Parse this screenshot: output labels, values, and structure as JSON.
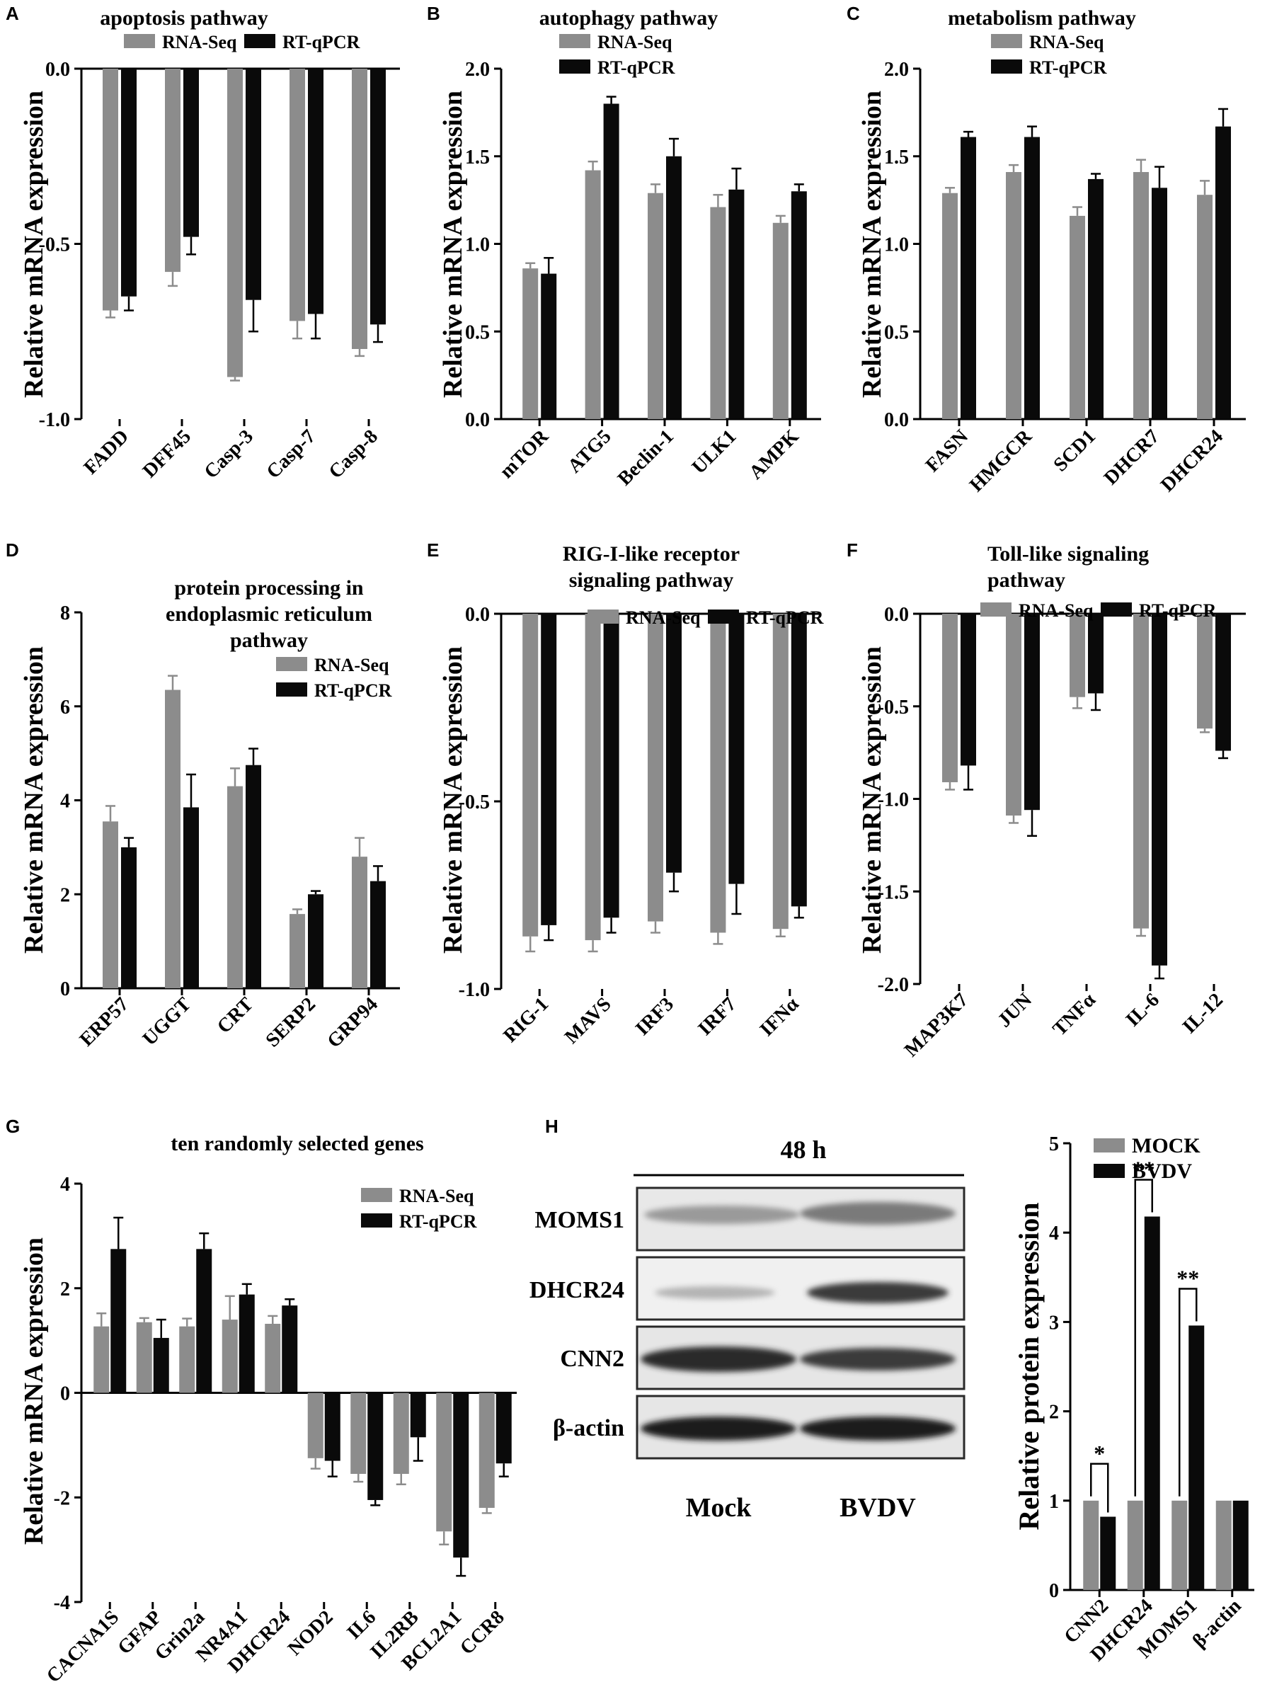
{
  "figure": {
    "panel_letters": [
      "A",
      "B",
      "C",
      "D",
      "E",
      "F",
      "G",
      "H"
    ],
    "ylabel_mrna": "Relative mRNA expression",
    "ylabel_protein": "Relative protein expression"
  },
  "colors": {
    "rna_seq": "#8c8c8c",
    "rt_qpcr": "#0a0a0a",
    "mock": "#8c8c8c",
    "bvdv": "#0a0a0a"
  },
  "chart_data": [
    {
      "id": "A",
      "type": "bar",
      "title_lines": [
        "apoptosis pathway"
      ],
      "ylabel": "Relative mRNA expression",
      "ylim": [
        -1.0,
        0.0
      ],
      "ticks": [
        0.0,
        -0.5,
        -1.0
      ],
      "tick_labels": [
        "0.0",
        "-0.5",
        "-1.0"
      ],
      "baseline": 0,
      "categories": [
        "FADD",
        "DFF45",
        "Casp-3",
        "Casp-7",
        "Casp-8"
      ],
      "legend": {
        "entries": [
          "RNA-Seq",
          "RT-qPCR"
        ],
        "position": "top-center"
      },
      "series": [
        {
          "name": "RNA-Seq",
          "values": [
            -0.69,
            -0.58,
            -0.88,
            -0.72,
            -0.8
          ],
          "errors": [
            0.02,
            0.04,
            0.01,
            0.05,
            0.02
          ]
        },
        {
          "name": "RT-qPCR",
          "values": [
            -0.65,
            -0.48,
            -0.66,
            -0.7,
            -0.73
          ],
          "errors": [
            0.04,
            0.05,
            0.09,
            0.07,
            0.05
          ]
        }
      ]
    },
    {
      "id": "B",
      "type": "bar",
      "title_lines": [
        "autophagy pathway"
      ],
      "ylabel": "Relative mRNA expression",
      "ylim": [
        0.0,
        2.0
      ],
      "ticks": [
        0.0,
        0.5,
        1.0,
        1.5,
        2.0
      ],
      "tick_labels": [
        "0.0",
        "0.5",
        "1.0",
        "1.5",
        "2.0"
      ],
      "baseline": 0,
      "categories": [
        "mTOR",
        "ATG5",
        "Beclin-1",
        "ULK1",
        "AMPK"
      ],
      "legend": {
        "entries": [
          "RNA-Seq",
          "RT-qPCR"
        ],
        "position": "top-left"
      },
      "series": [
        {
          "name": "RNA-Seq",
          "values": [
            0.86,
            1.42,
            1.29,
            1.21,
            1.12
          ],
          "errors": [
            0.03,
            0.05,
            0.05,
            0.07,
            0.04
          ]
        },
        {
          "name": "RT-qPCR",
          "values": [
            0.83,
            1.8,
            1.5,
            1.31,
            1.3
          ],
          "errors": [
            0.09,
            0.04,
            0.1,
            0.12,
            0.04
          ]
        }
      ]
    },
    {
      "id": "C",
      "type": "bar",
      "title_lines": [
        "metabolism pathway"
      ],
      "ylabel": "Relative mRNA expression",
      "ylim": [
        0.0,
        2.0
      ],
      "ticks": [
        0.0,
        0.5,
        1.0,
        1.5,
        2.0
      ],
      "tick_labels": [
        "0.0",
        "0.5",
        "1.0",
        "1.5",
        "2.0"
      ],
      "baseline": 0,
      "categories": [
        "FASN",
        "HMGCR",
        "SCD1",
        "DHCR7",
        "DHCR24"
      ],
      "legend": {
        "entries": [
          "RNA-Seq",
          "RT-qPCR"
        ],
        "position": "top-left"
      },
      "series": [
        {
          "name": "RNA-Seq",
          "values": [
            1.29,
            1.41,
            1.16,
            1.41,
            1.28
          ],
          "errors": [
            0.03,
            0.04,
            0.05,
            0.07,
            0.08
          ]
        },
        {
          "name": "RT-qPCR",
          "values": [
            1.61,
            1.61,
            1.37,
            1.32,
            1.67
          ],
          "errors": [
            0.03,
            0.06,
            0.03,
            0.12,
            0.1
          ]
        }
      ]
    },
    {
      "id": "D",
      "type": "bar",
      "title_lines": [
        "protein processing in",
        "endoplasmic reticulum",
        "pathway"
      ],
      "ylabel": "Relative mRNA expression",
      "ylim": [
        0,
        8
      ],
      "ticks": [
        0,
        2,
        4,
        6,
        8
      ],
      "tick_labels": [
        "0",
        "2",
        "4",
        "6",
        "8"
      ],
      "baseline": 0,
      "categories": [
        "ERP57",
        "UGGT",
        "CRT",
        "SERP2",
        "GRP94"
      ],
      "legend": {
        "entries": [
          "RNA-Seq",
          "RT-qPCR"
        ],
        "position": "top-right"
      },
      "series": [
        {
          "name": "RNA-Seq",
          "values": [
            3.55,
            6.35,
            4.3,
            1.58,
            2.8
          ],
          "errors": [
            0.33,
            0.3,
            0.38,
            0.1,
            0.4
          ]
        },
        {
          "name": "RT-qPCR",
          "values": [
            3.0,
            3.85,
            4.75,
            2.0,
            2.28
          ],
          "errors": [
            0.2,
            0.7,
            0.35,
            0.07,
            0.32
          ]
        }
      ]
    },
    {
      "id": "E",
      "type": "bar",
      "title_lines": [
        "RIG-I-like receptor",
        "signaling pathway"
      ],
      "ylabel": "Relative mRNA expression",
      "ylim": [
        -1.0,
        0.0
      ],
      "ticks": [
        0.0,
        -0.5,
        -1.0
      ],
      "tick_labels": [
        "0.0",
        "-0.5",
        "-1.0"
      ],
      "baseline": 0,
      "categories": [
        "RIG-1",
        "MAVS",
        "IRF3",
        "IRF7",
        "IFNα"
      ],
      "legend": {
        "entries": [
          "RNA-Seq",
          "RT-qPCR"
        ],
        "position": "top-right"
      },
      "series": [
        {
          "name": "RNA-Seq",
          "values": [
            -0.86,
            -0.87,
            -0.82,
            -0.85,
            -0.84
          ],
          "errors": [
            0.04,
            0.03,
            0.03,
            0.03,
            0.02
          ]
        },
        {
          "name": "RT-qPCR",
          "values": [
            -0.83,
            -0.81,
            -0.69,
            -0.72,
            -0.78
          ],
          "errors": [
            0.04,
            0.04,
            0.05,
            0.08,
            0.03
          ]
        }
      ]
    },
    {
      "id": "F",
      "type": "bar",
      "title_lines": [
        "Toll-like signaling",
        "pathway"
      ],
      "ylabel": "Relative mRNA expression",
      "ylim": [
        -2.0,
        0.0
      ],
      "ticks": [
        0.0,
        -0.5,
        -1.0,
        -1.5,
        -2.0
      ],
      "tick_labels": [
        "0.0",
        "-0.5",
        "-1.0",
        "-1.5",
        "-2.0"
      ],
      "baseline": 0,
      "categories": [
        "MAP3K7",
        "JUN",
        "TNFα",
        "IL-6",
        "IL-12"
      ],
      "legend": {
        "entries": [
          "RNA-Seq",
          "RT-qPCR"
        ],
        "position": "top-right"
      },
      "series": [
        {
          "name": "RNA-Seq",
          "values": [
            -0.91,
            -1.09,
            -0.45,
            -1.7,
            -0.62
          ],
          "errors": [
            0.04,
            0.04,
            0.06,
            0.04,
            0.02
          ]
        },
        {
          "name": "RT-qPCR",
          "values": [
            -0.82,
            -1.06,
            -0.43,
            -1.9,
            -0.74
          ],
          "errors": [
            0.13,
            0.14,
            0.09,
            0.07,
            0.04
          ]
        }
      ]
    },
    {
      "id": "G",
      "type": "bar",
      "title_lines": [
        "ten randomly selected genes"
      ],
      "ylabel": "Relative mRNA expression",
      "ylim": [
        -4,
        4
      ],
      "ticks": [
        4,
        2,
        0,
        -2,
        -4
      ],
      "tick_labels": [
        "4",
        "2",
        "0",
        "-2",
        "-4"
      ],
      "baseline": 0,
      "categories": [
        "CACNA1S",
        "GFAP",
        "Grin2a",
        "NR4A1",
        "DHCR24",
        "NOD2",
        "IL6",
        "IL2RB",
        "BCL2A1",
        "CCR8"
      ],
      "legend": {
        "entries": [
          "RNA-Seq",
          "RT-qPCR"
        ],
        "position": "top-right"
      },
      "series": [
        {
          "name": "RNA-Seq",
          "values": [
            1.27,
            1.35,
            1.27,
            1.4,
            1.32,
            -1.25,
            -1.55,
            -1.55,
            -2.65,
            -2.2
          ],
          "errors": [
            0.25,
            0.08,
            0.15,
            0.45,
            0.15,
            0.2,
            0.15,
            0.2,
            0.25,
            0.1
          ]
        },
        {
          "name": "RT-qPCR",
          "values": [
            2.75,
            1.05,
            2.75,
            1.88,
            1.67,
            -1.3,
            -2.05,
            -0.85,
            -3.15,
            -1.35
          ],
          "errors": [
            0.6,
            0.35,
            0.3,
            0.2,
            0.12,
            0.3,
            0.1,
            0.45,
            0.35,
            0.25
          ]
        }
      ]
    },
    {
      "id": "H",
      "type": "bar",
      "title_lines": [],
      "ylabel": "Relative protein expression",
      "ylim": [
        0,
        5
      ],
      "ticks": [
        0,
        1,
        2,
        3,
        4,
        5
      ],
      "tick_labels": [
        "0",
        "1",
        "2",
        "3",
        "4",
        "5"
      ],
      "baseline": 0,
      "categories": [
        "CNN2",
        "DHCR24",
        "MOMS1",
        "β-actin"
      ],
      "legend": {
        "entries": [
          "MOCK",
          "BVDV"
        ],
        "position": "top-left"
      },
      "series": [
        {
          "name": "MOCK",
          "values": [
            1.0,
            1.0,
            1.0,
            1.0
          ],
          "errors": [
            0,
            0,
            0,
            0
          ]
        },
        {
          "name": "BVDV",
          "values": [
            0.82,
            4.18,
            2.96,
            1.0
          ],
          "errors": [
            0,
            0,
            0,
            0
          ]
        }
      ],
      "annotations": [
        {
          "category": "CNN2",
          "text": "*"
        },
        {
          "category": "DHCR24",
          "text": "**"
        },
        {
          "category": "MOMS1",
          "text": "**"
        }
      ]
    }
  ],
  "blot": {
    "time_label": "48 h",
    "bands": [
      "MOMS1",
      "DHCR24",
      "CNN2",
      "β-actin"
    ],
    "lane_labels": [
      "Mock",
      "BVDV"
    ]
  }
}
